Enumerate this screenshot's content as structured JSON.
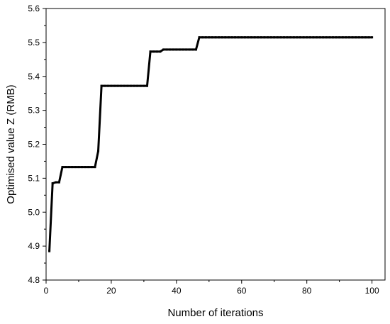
{
  "chart_data": {
    "type": "line",
    "title": "",
    "xlabel": "Number of iterations",
    "ylabel": "Optimised value Z (RMB)",
    "xlim": [
      0,
      104
    ],
    "ylim": [
      4.8,
      5.6
    ],
    "xticks": [
      0,
      20,
      40,
      60,
      80,
      100
    ],
    "yticks": [
      4.8,
      4.9,
      5.0,
      5.1,
      5.2,
      5.3,
      5.4,
      5.5,
      5.6
    ],
    "xtick_labels": [
      "0",
      "20",
      "40",
      "60",
      "80",
      "100"
    ],
    "ytick_labels": [
      "4.8",
      "4.9",
      "5.0",
      "5.1",
      "5.2",
      "5.3",
      "5.4",
      "5.5",
      "5.6"
    ],
    "grid": false,
    "legend": "none",
    "series": [
      {
        "color": "#000000",
        "x": [
          1,
          2,
          3,
          4,
          5,
          6,
          7,
          8,
          9,
          10,
          11,
          12,
          13,
          14,
          15,
          16,
          17,
          18,
          19,
          20,
          21,
          22,
          23,
          24,
          25,
          26,
          27,
          28,
          29,
          30,
          31,
          32,
          33,
          34,
          35,
          36,
          37,
          38,
          39,
          40,
          41,
          42,
          43,
          44,
          45,
          46,
          47,
          48,
          49,
          50,
          51,
          52,
          53,
          54,
          55,
          56,
          57,
          58,
          59,
          60,
          61,
          62,
          63,
          64,
          65,
          66,
          67,
          68,
          69,
          70,
          71,
          72,
          73,
          74,
          75,
          76,
          77,
          78,
          79,
          80,
          81,
          82,
          83,
          84,
          85,
          86,
          87,
          88,
          89,
          90,
          91,
          92,
          93,
          94,
          95,
          96,
          97,
          98,
          99,
          100
        ],
        "y": [
          4.885,
          5.085,
          5.088,
          5.088,
          5.133,
          5.133,
          5.133,
          5.133,
          5.133,
          5.133,
          5.133,
          5.133,
          5.133,
          5.133,
          5.133,
          5.18,
          5.372,
          5.372,
          5.372,
          5.372,
          5.372,
          5.372,
          5.372,
          5.372,
          5.372,
          5.372,
          5.372,
          5.372,
          5.372,
          5.372,
          5.372,
          5.473,
          5.473,
          5.473,
          5.473,
          5.479,
          5.479,
          5.479,
          5.479,
          5.479,
          5.479,
          5.479,
          5.479,
          5.479,
          5.479,
          5.479,
          5.515,
          5.515,
          5.515,
          5.515,
          5.515,
          5.515,
          5.515,
          5.515,
          5.515,
          5.515,
          5.515,
          5.515,
          5.515,
          5.515,
          5.515,
          5.515,
          5.515,
          5.515,
          5.515,
          5.515,
          5.515,
          5.515,
          5.515,
          5.515,
          5.515,
          5.515,
          5.515,
          5.515,
          5.515,
          5.515,
          5.515,
          5.515,
          5.515,
          5.515,
          5.515,
          5.515,
          5.515,
          5.515,
          5.515,
          5.515,
          5.515,
          5.515,
          5.515,
          5.515,
          5.515,
          5.515,
          5.515,
          5.515,
          5.515,
          5.515,
          5.515,
          5.515,
          5.515,
          5.515
        ]
      }
    ]
  }
}
